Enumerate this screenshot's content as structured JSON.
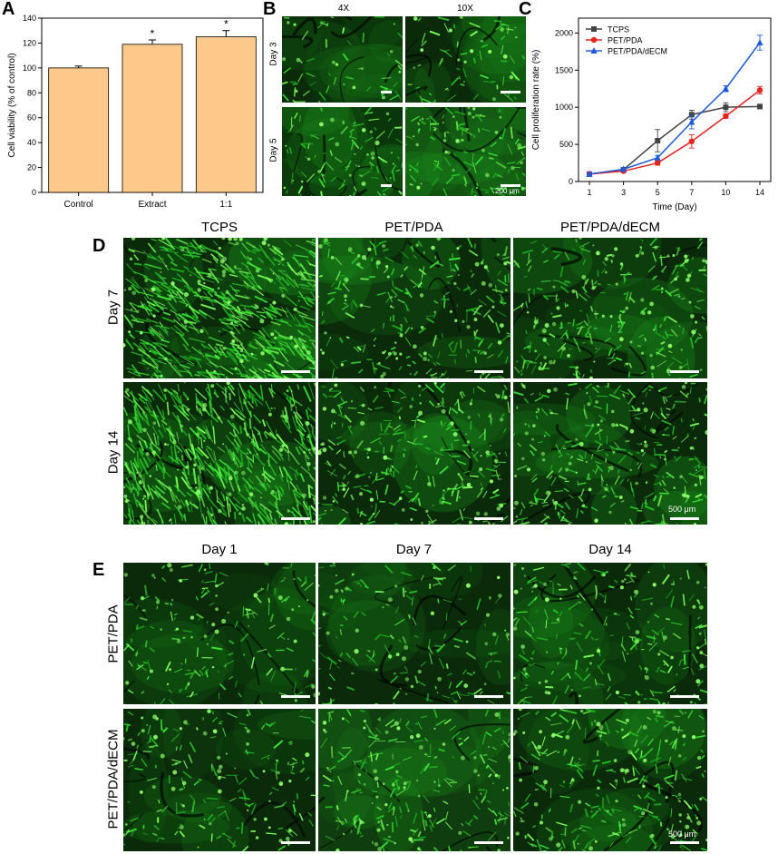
{
  "panels": {
    "A": {
      "label": "A"
    },
    "B": {
      "label": "B",
      "col_titles": [
        "4X",
        "10X"
      ],
      "row_labels": [
        "Day 3",
        "Day 5"
      ],
      "scale_text": "200 μm"
    },
    "C": {
      "label": "C"
    },
    "D": {
      "label": "D",
      "col_titles": [
        "TCPS",
        "PET/PDA",
        "PET/PDA/dECM"
      ],
      "row_labels": [
        "Day 7",
        "Day 14"
      ],
      "scale_text": "500 μm"
    },
    "E": {
      "label": "E",
      "col_titles": [
        "Day 1",
        "Day 7",
        "Day 14"
      ],
      "row_labels": [
        "PET/PDA",
        "PET/PDA/dECM"
      ],
      "scale_text": "500 μm"
    }
  },
  "chart_data": [
    {
      "type": "bar",
      "panel": "A",
      "categories": [
        "Control",
        "Extract",
        "1:1"
      ],
      "values": [
        100,
        119,
        125
      ],
      "errors": [
        1.5,
        3.5,
        5
      ],
      "significance": [
        "",
        "*",
        "*"
      ],
      "ylabel": "Cell viability (% of control)",
      "xlabel": "",
      "ylim": [
        0,
        140
      ],
      "yticks": [
        0,
        20,
        40,
        60,
        80,
        100,
        120,
        140
      ],
      "bar_color": "#fcc98a",
      "grid": false
    },
    {
      "type": "line",
      "panel": "C",
      "x": [
        "1",
        "3",
        "5",
        "7",
        "10",
        "14"
      ],
      "series": [
        {
          "name": "TCPS",
          "values": [
            100,
            160,
            550,
            900,
            1000,
            1010
          ],
          "errors": [
            20,
            20,
            150,
            60,
            60,
            30
          ],
          "color": "#444444",
          "marker": "square"
        },
        {
          "name": "PET/PDA",
          "values": [
            100,
            140,
            250,
            540,
            880,
            1230
          ],
          "errors": [
            15,
            20,
            30,
            90,
            30,
            50
          ],
          "color": "#e8231f",
          "marker": "circle"
        },
        {
          "name": "PET/PDA/dECM",
          "values": [
            100,
            165,
            320,
            800,
            1250,
            1870
          ],
          "errors": [
            15,
            20,
            30,
            90,
            40,
            100
          ],
          "color": "#1f5bd8",
          "marker": "triangle"
        }
      ],
      "xlabel": "Time (Day)",
      "ylabel": "Cell proliferation rate (%)",
      "ylim": [
        0,
        2200
      ],
      "yticks": [
        0,
        500,
        1000,
        1500,
        2000
      ],
      "legend": "top-left",
      "grid": false
    }
  ]
}
